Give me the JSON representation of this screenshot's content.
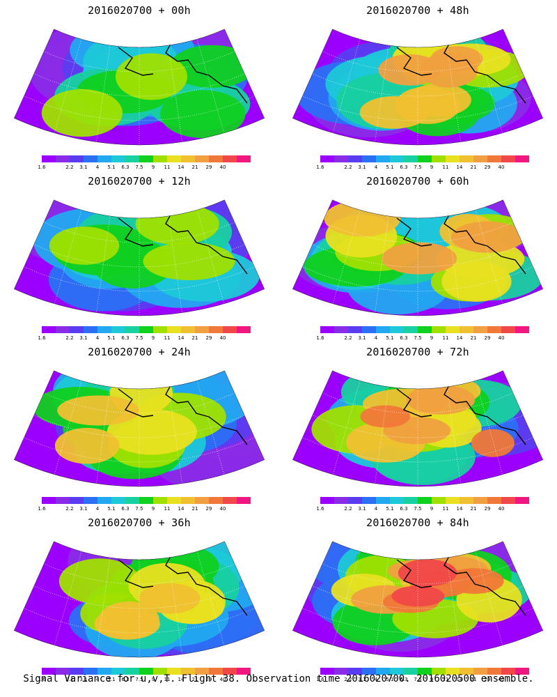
{
  "panels": [
    {
      "title": "2016020700 + 00h",
      "max_intensity": 0.55
    },
    {
      "title": "2016020700 + 48h",
      "max_intensity": 0.78
    },
    {
      "title": "2016020700 + 12h",
      "max_intensity": 0.6
    },
    {
      "title": "2016020700 + 60h",
      "max_intensity": 0.82
    },
    {
      "title": "2016020700 + 24h",
      "max_intensity": 0.68
    },
    {
      "title": "2016020700 + 72h",
      "max_intensity": 0.88
    },
    {
      "title": "2016020700 + 36h",
      "max_intensity": 0.74
    },
    {
      "title": "2016020700 + 84h",
      "max_intensity": 0.92
    }
  ],
  "colorbar": {
    "colors": [
      "#9b00ff",
      "#8a2be8",
      "#5a3cf0",
      "#2c6ff5",
      "#22a8f0",
      "#1ec8d8",
      "#18d0a0",
      "#10d020",
      "#a0e000",
      "#e8e020",
      "#f0c030",
      "#f0a040",
      "#f07838",
      "#f04848",
      "#f01880"
    ],
    "ticks": [
      "1.6",
      "2.2",
      "3.1",
      "4",
      "5.1",
      "6.3",
      "7.5",
      "9",
      "11",
      "14",
      "21",
      "29",
      "40"
    ]
  },
  "footer": "Signal Variance for u,v,T. Flight 38. Observation time 2016020700. 2016020500 ensemble."
}
